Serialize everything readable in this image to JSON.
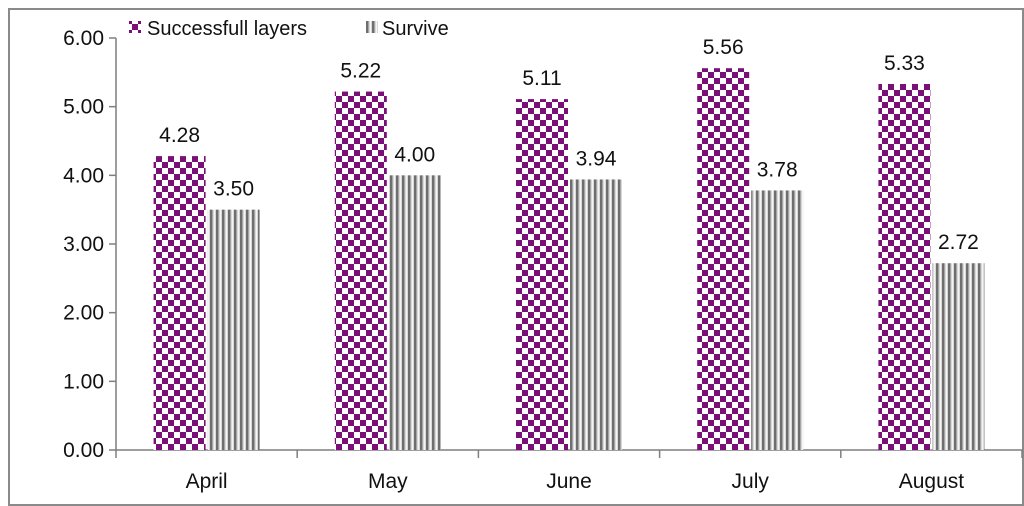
{
  "chart_data": {
    "type": "bar",
    "categories": [
      "April",
      "May",
      "June",
      "July",
      "August"
    ],
    "series": [
      {
        "name": "Successfull layers",
        "values": [
          4.28,
          5.22,
          5.11,
          5.56,
          5.33
        ],
        "color": "#7a0f78",
        "pattern": "checkerboard"
      },
      {
        "name": "Survive",
        "values": [
          3.5,
          4.0,
          3.94,
          3.78,
          2.72
        ],
        "color": "#8c8c8c",
        "pattern": "vertical-stripes"
      }
    ],
    "data_labels": [
      [
        "4.28",
        "5.22",
        "5.11",
        "5.56",
        "5.33"
      ],
      [
        "3.50",
        "4.00",
        "3.94",
        "3.78",
        "2.72"
      ]
    ],
    "y_ticks": [
      "0.00",
      "1.00",
      "2.00",
      "3.00",
      "4.00",
      "5.00",
      "6.00"
    ],
    "ylim": [
      0,
      6
    ],
    "title": "",
    "xlabel": "",
    "ylabel": "",
    "grid": false,
    "legend_position": "top-left"
  }
}
